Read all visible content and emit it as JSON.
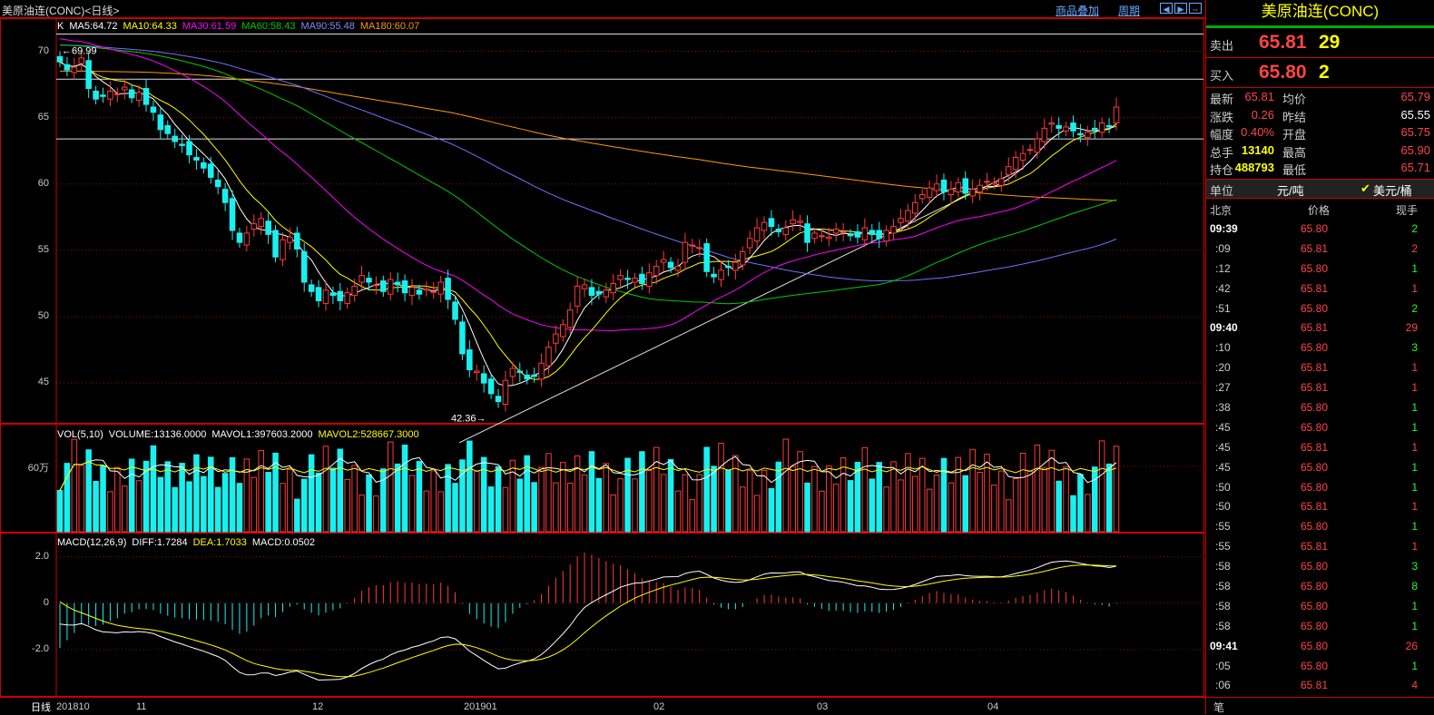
{
  "header": {
    "title": "美原油连(CONC)<日线>",
    "link_overlay": "商品叠加",
    "link_period": "周期",
    "nav_icons": [
      "prev-icon",
      "next-icon",
      "expand-icon"
    ]
  },
  "colors": {
    "up": "#ff3a3a",
    "down": "#18f0f0",
    "ma5": "#ffffff",
    "ma10": "#ffff00",
    "ma30": "#ff00ff",
    "ma60": "#00cc00",
    "ma90": "#7070ff",
    "ma180": "#ff9900"
  },
  "ma_legend": {
    "k": "K",
    "ma5": "MA5:64.72",
    "ma10": "MA10:64.33",
    "ma30": "MA30:61.59",
    "ma60": "MA60:58.43",
    "ma90": "MA90:55.48",
    "ma180": "MA180:60.07"
  },
  "vol_legend": {
    "name": "VOL(5,10)",
    "volume": "VOLUME:13136.0000",
    "mavol1": "MAVOL1:397603.2000",
    "mavol2": "MAVOL2:528667.3000"
  },
  "macd_legend": {
    "name": "MACD(12,26,9)",
    "diff": "DIFF:1.7284",
    "dea": "DEA:1.7033",
    "macd": "MACD:0.0502"
  },
  "annotations": {
    "high": "69.99",
    "low": "42.36"
  },
  "price_axis": [
    "70",
    "65",
    "60",
    "55",
    "50",
    "45"
  ],
  "vol_axis": [
    "60万"
  ],
  "macd_axis": [
    "2.0",
    "0",
    "-2.0"
  ],
  "bottom": {
    "ctl": "日线",
    "ticks": [
      "201810",
      "11",
      "12",
      "201901",
      "02",
      "03",
      "04"
    ]
  },
  "chart_data": {
    "type": "candlestick",
    "price_range": [
      42,
      72.5
    ],
    "horizontal_lines": [
      71.3,
      67.9,
      63.4
    ],
    "trendline": [
      [
        0,
        40.5
      ],
      [
        124,
        61.2
      ]
    ],
    "closes": [
      69.2,
      68.6,
      68.8,
      69.5,
      67.2,
      66.4,
      66.6,
      67.0,
      66.8,
      67.3,
      66.5,
      66.9,
      66.0,
      65.4,
      64.1,
      63.8,
      63.2,
      62.9,
      62.2,
      61.8,
      61.2,
      60.5,
      59.8,
      58.6,
      56.5,
      55.6,
      56.3,
      57.0,
      57.4,
      56.2,
      54.5,
      55.8,
      56.0,
      55.1,
      52.6,
      51.9,
      51.2,
      52.0,
      51.6,
      51.2,
      51.8,
      52.3,
      53.1,
      52.6,
      52.4,
      51.9,
      52.8,
      52.4,
      51.8,
      52.2,
      51.7,
      52.1,
      51.9,
      52.6,
      51.3,
      49.8,
      47.2,
      46.0,
      45.9,
      45.0,
      44.2,
      43.6,
      45.2,
      46.1,
      45.8,
      45.3,
      45.5,
      46.5,
      47.7,
      48.7,
      49.4,
      50.5,
      52.3,
      52.4,
      51.6,
      51.7,
      52.0,
      52.5,
      53.1,
      52.8,
      52.9,
      52.5,
      53.3,
      53.8,
      54.3,
      53.7,
      53.8,
      55.6,
      55.4,
      55.2,
      53.4,
      53.0,
      53.5,
      53.7,
      54.1,
      54.9,
      55.9,
      56.7,
      57.1,
      56.8,
      56.4,
      56.7,
      57.3,
      57.2,
      55.6,
      56.3,
      56.1,
      56.0,
      56.6,
      56.4,
      56.1,
      56.0,
      56.7,
      56.2,
      55.9,
      56.5,
      56.8,
      57.4,
      58.0,
      58.6,
      59.2,
      59.7,
      60.0,
      59.4,
      59.6,
      60.1,
      59.3,
      59.6,
      59.9,
      60.2,
      60.1,
      60.4,
      61.3,
      62.0,
      62.3,
      62.6,
      63.4,
      64.2,
      64.6,
      64.2,
      64.3,
      64.0,
      63.7,
      63.9,
      64.1,
      64.6,
      64.3,
      65.8
    ],
    "volume_range": [
      0,
      850000
    ],
    "volume_ref": 600000,
    "macd_range": [
      -4,
      3
    ],
    "diff_start": -0.1,
    "dea_start": 0.3
  },
  "side": {
    "title": "美原油连(CONC)",
    "ask": {
      "label": "卖出",
      "price": "65.81",
      "vol": "29"
    },
    "bid": {
      "label": "买入",
      "price": "65.80",
      "vol": "2"
    },
    "stats": [
      {
        "label": "最新",
        "value": "65.81",
        "c": "red"
      },
      {
        "label": "均价",
        "value": "65.79",
        "c": "red"
      },
      {
        "label": "涨跌",
        "value": "0.26",
        "c": "red"
      },
      {
        "label": "昨结",
        "value": "65.55",
        "c": "wht"
      },
      {
        "label": "幅度",
        "value": "0.40%",
        "c": "red"
      },
      {
        "label": "开盘",
        "value": "65.75",
        "c": "red"
      },
      {
        "label": "总手",
        "value": "13140",
        "c": "yel"
      },
      {
        "label": "最高",
        "value": "65.90",
        "c": "red"
      },
      {
        "label": "持仓",
        "value": "488793",
        "c": "yel"
      },
      {
        "label": "最低",
        "value": "65.71",
        "c": "red"
      }
    ],
    "unit": {
      "label": "单位",
      "cny": "元/吨",
      "usd": "美元/桶"
    },
    "tick_header": {
      "time": "北京",
      "price": "价格",
      "vol": "现手"
    },
    "ticks": [
      {
        "t": "09:39",
        "p": "65.80",
        "v": "2",
        "bold": true,
        "vc": "grn"
      },
      {
        "t": ":09",
        "p": "65.81",
        "v": "2",
        "vc": "red"
      },
      {
        "t": ":12",
        "p": "65.80",
        "v": "1",
        "vc": "grn"
      },
      {
        "t": ":42",
        "p": "65.81",
        "v": "1",
        "vc": "red"
      },
      {
        "t": ":51",
        "p": "65.80",
        "v": "2",
        "vc": "grn"
      },
      {
        "t": "09:40",
        "p": "65.81",
        "v": "29",
        "bold": true,
        "vc": "red"
      },
      {
        "t": ":10",
        "p": "65.80",
        "v": "3",
        "vc": "grn"
      },
      {
        "t": ":20",
        "p": "65.81",
        "v": "1",
        "vc": "red"
      },
      {
        "t": ":27",
        "p": "65.81",
        "v": "1",
        "vc": "red"
      },
      {
        "t": ":38",
        "p": "65.80",
        "v": "1",
        "vc": "grn"
      },
      {
        "t": ":45",
        "p": "65.80",
        "v": "1",
        "vc": "grn"
      },
      {
        "t": ":45",
        "p": "65.81",
        "v": "1",
        "vc": "red"
      },
      {
        "t": ":45",
        "p": "65.80",
        "v": "1",
        "vc": "grn"
      },
      {
        "t": ":50",
        "p": "65.80",
        "v": "1",
        "vc": "grn"
      },
      {
        "t": ":50",
        "p": "65.81",
        "v": "1",
        "vc": "red"
      },
      {
        "t": ":55",
        "p": "65.80",
        "v": "1",
        "vc": "grn"
      },
      {
        "t": ":55",
        "p": "65.81",
        "v": "1",
        "vc": "red"
      },
      {
        "t": ":58",
        "p": "65.80",
        "v": "3",
        "vc": "grn"
      },
      {
        "t": ":58",
        "p": "65.80",
        "v": "8",
        "vc": "grn"
      },
      {
        "t": ":58",
        "p": "65.80",
        "v": "1",
        "vc": "grn"
      },
      {
        "t": ":58",
        "p": "65.80",
        "v": "1",
        "vc": "grn"
      },
      {
        "t": "09:41",
        "p": "65.80",
        "v": "26",
        "bold": true,
        "vc": "red"
      },
      {
        "t": ":05",
        "p": "65.80",
        "v": "1",
        "vc": "grn"
      },
      {
        "t": ":06",
        "p": "65.81",
        "v": "4",
        "vc": "red"
      }
    ],
    "footer": "笔"
  }
}
